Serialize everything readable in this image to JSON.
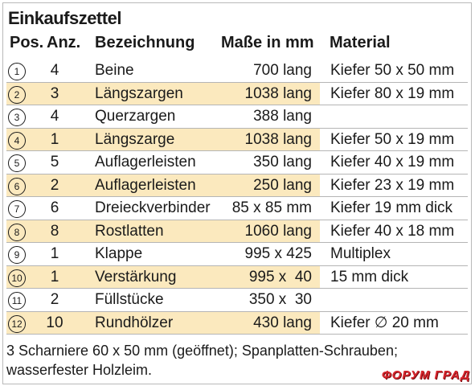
{
  "title": "Einkaufszettel",
  "headers": {
    "pos": "Pos.",
    "anz": "Anz.",
    "bez": "Bezeichnung",
    "mas": "Maße in mm",
    "mat": "Material"
  },
  "rows": [
    {
      "pos": "1",
      "anz": "4",
      "bez": "Beine",
      "mas": "700 lang",
      "mat": "Kiefer 50 x 50 mm",
      "highlight": false
    },
    {
      "pos": "2",
      "anz": "3",
      "bez": "Längszargen",
      "mas": "1038 lang",
      "mat": "Kiefer 80 x 19 mm",
      "highlight": true
    },
    {
      "pos": "3",
      "anz": "4",
      "bez": "Querzargen",
      "mas": "388 lang",
      "mat": "",
      "highlight": false
    },
    {
      "pos": "4",
      "anz": "1",
      "bez": "Längszarge",
      "mas": "1038 lang",
      "mat": "Kiefer 50 x 19 mm",
      "highlight": true
    },
    {
      "pos": "5",
      "anz": "5",
      "bez": "Auflagerleisten",
      "mas": "350 lang",
      "mat": "Kiefer 40 x 19 mm",
      "highlight": false
    },
    {
      "pos": "6",
      "anz": "2",
      "bez": "Auflagerleisten",
      "mas": "250 lang",
      "mat": "Kiefer 23 x 19 mm",
      "highlight": true
    },
    {
      "pos": "7",
      "anz": "6",
      "bez": "Dreieckverbinder",
      "mas": "85 x 85 mm",
      "mat": "Kiefer 19 mm dick",
      "highlight": false
    },
    {
      "pos": "8",
      "anz": "8",
      "bez": "Rostlatten",
      "mas": "1060 lang",
      "mat": "Kiefer 40 x 18 mm",
      "highlight": true
    },
    {
      "pos": "9",
      "anz": "1",
      "bez": "Klappe",
      "mas": "995 x 425",
      "mat": "Multiplex",
      "highlight": false
    },
    {
      "pos": "10",
      "anz": "1",
      "bez": "Verstärkung",
      "mas": "995 x  40",
      "mat": "15 mm dick",
      "highlight": true
    },
    {
      "pos": "11",
      "anz": "2",
      "bez": "Füllstücke",
      "mas": "350 x  30",
      "mat": "",
      "highlight": false
    },
    {
      "pos": "12",
      "anz": "10",
      "bez": "Rundhölzer",
      "mas": "430 lang",
      "mat": "Kiefer ∅ 20 mm",
      "highlight": true
    }
  ],
  "footer": "3 Scharniere 60 x 50 mm (geöffnet); Spanplatten-Schrauben; wasserfester Holzleim.",
  "watermark": "ФОРУМ ГРАД",
  "colors": {
    "highlight": "#fbe9be",
    "watermark": "#d7262d"
  }
}
